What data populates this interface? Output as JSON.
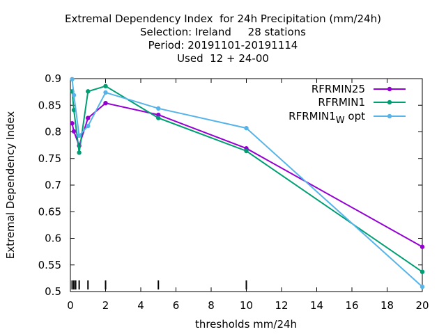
{
  "chart_data": {
    "type": "line",
    "title_lines": [
      "Extremal Dependency Index  for 24h Precipitation (mm/24h)",
      "Selection: Ireland     28 stations",
      "Period: 20191101-20191114",
      "Used  12 + 24-00"
    ],
    "xlabel": "thresholds mm/24h",
    "ylabel": "Extremal Dependency Index",
    "xlim": [
      0,
      20
    ],
    "ylim": [
      0.5,
      0.9
    ],
    "xticks": [
      0,
      2,
      4,
      6,
      8,
      10,
      12,
      14,
      16,
      18,
      20
    ],
    "yticks": [
      0.5,
      0.55,
      0.6,
      0.65,
      0.7,
      0.75,
      0.8,
      0.85,
      0.9
    ],
    "ytick_labels": [
      "0.5",
      "0.55",
      "0.6",
      "0.65",
      "0.7",
      "0.75",
      "0.8",
      "0.85",
      "0.9"
    ],
    "threshold_marks": [
      0.1,
      0.2,
      0.3,
      0.5,
      1,
      2,
      5,
      10
    ],
    "legend_position": "top-right",
    "series": [
      {
        "name": "RFRMIN25",
        "color": "#9400d3",
        "x": [
          0.1,
          0.2,
          0.5,
          1,
          2,
          5,
          10,
          20
        ],
        "y": [
          0.816,
          0.801,
          0.774,
          0.826,
          0.854,
          0.832,
          0.769,
          0.584
        ]
      },
      {
        "name": "RFRMIN1",
        "color": "#009e73",
        "x": [
          0.1,
          0.2,
          0.5,
          1,
          2,
          5,
          10,
          20
        ],
        "y": [
          0.876,
          0.841,
          0.761,
          0.876,
          0.886,
          0.826,
          0.764,
          0.537
        ]
      },
      {
        "name": "RFRMIN1",
        "name_sub": "W",
        "name_suffix": " opt",
        "color": "#56b4e9",
        "x": [
          0.1,
          0.2,
          0.5,
          1,
          2,
          5,
          10,
          20
        ],
        "y": [
          0.899,
          0.869,
          0.793,
          0.811,
          0.874,
          0.844,
          0.807,
          0.509
        ]
      }
    ]
  }
}
